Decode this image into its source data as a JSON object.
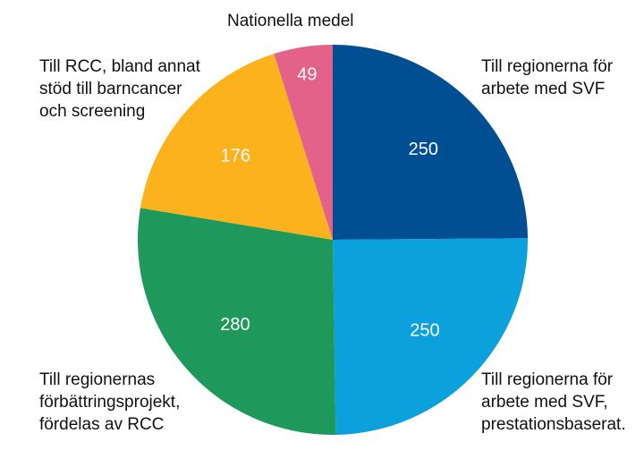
{
  "chart_data": {
    "type": "pie",
    "title": "",
    "start_angle": "12 o'clock",
    "direction": "clockwise",
    "slices": [
      {
        "label": "Till regionerna för\narbete med SVF",
        "value": 250,
        "color": "#004f92"
      },
      {
        "label": "Till regionerna för\narbete med SVF,\nprestationsbaserat.",
        "value": 250,
        "color": "#0ca0dd"
      },
      {
        "label": "Till regionernas\nförbättringsprojekt,\nfördelas av RCC",
        "value": 280,
        "color": "#1f995b"
      },
      {
        "label": "Till RCC, bland annat\nstöd till barncancer\noch screening",
        "value": 176,
        "color": "#fcb21c"
      },
      {
        "label": "Nationella medel",
        "value": 49,
        "color": "#e3628a"
      }
    ]
  }
}
